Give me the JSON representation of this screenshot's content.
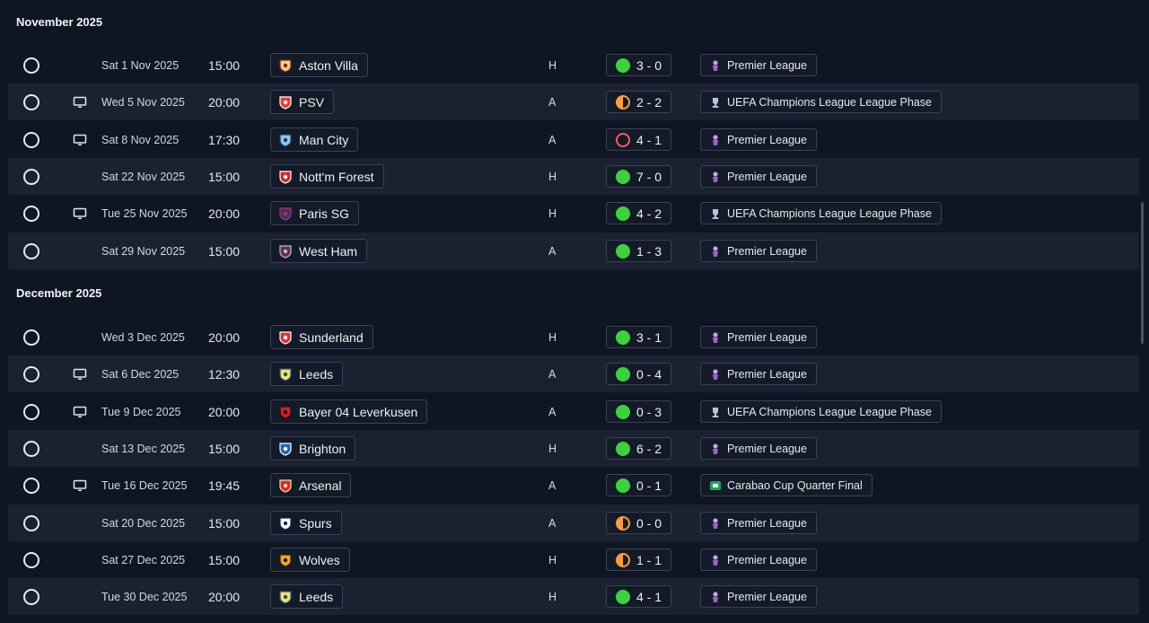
{
  "months": [
    {
      "label": "November 2025",
      "fixtures": [
        {
          "tv": false,
          "date": "Sat 1 Nov 2025",
          "time": "15:00",
          "opponent": "Aston Villa",
          "badge": "aston-villa",
          "venue": "H",
          "result": "win",
          "score": "3 - 0",
          "competition": "Premier League",
          "comp": "pl"
        },
        {
          "tv": true,
          "date": "Wed 5 Nov 2025",
          "time": "20:00",
          "opponent": "PSV",
          "badge": "psv",
          "venue": "A",
          "result": "draw",
          "score": "2 - 2",
          "competition": "UEFA Champions League League Phase",
          "comp": "ucl"
        },
        {
          "tv": true,
          "date": "Sat 8 Nov 2025",
          "time": "17:30",
          "opponent": "Man City",
          "badge": "man-city",
          "venue": "A",
          "result": "loss",
          "score": "4 - 1",
          "competition": "Premier League",
          "comp": "pl"
        },
        {
          "tv": false,
          "date": "Sat 22 Nov 2025",
          "time": "15:00",
          "opponent": "Nott'm Forest",
          "badge": "forest",
          "venue": "H",
          "result": "win",
          "score": "7 - 0",
          "competition": "Premier League",
          "comp": "pl"
        },
        {
          "tv": true,
          "date": "Tue 25 Nov 2025",
          "time": "20:00",
          "opponent": "Paris SG",
          "badge": "psg",
          "venue": "H",
          "result": "win",
          "score": "4 - 2",
          "competition": "UEFA Champions League League Phase",
          "comp": "ucl"
        },
        {
          "tv": false,
          "date": "Sat 29 Nov 2025",
          "time": "15:00",
          "opponent": "West Ham",
          "badge": "west-ham",
          "venue": "A",
          "result": "win",
          "score": "1 - 3",
          "competition": "Premier League",
          "comp": "pl"
        }
      ]
    },
    {
      "label": "December 2025",
      "fixtures": [
        {
          "tv": false,
          "date": "Wed 3 Dec 2025",
          "time": "20:00",
          "opponent": "Sunderland",
          "badge": "sunderland",
          "venue": "H",
          "result": "win",
          "score": "3 - 1",
          "competition": "Premier League",
          "comp": "pl"
        },
        {
          "tv": true,
          "date": "Sat 6 Dec 2025",
          "time": "12:30",
          "opponent": "Leeds",
          "badge": "leeds",
          "venue": "A",
          "result": "win",
          "score": "0 - 4",
          "competition": "Premier League",
          "comp": "pl"
        },
        {
          "tv": true,
          "date": "Tue 9 Dec 2025",
          "time": "20:00",
          "opponent": "Bayer 04 Leverkusen",
          "badge": "leverkusen",
          "venue": "A",
          "result": "win",
          "score": "0 - 3",
          "competition": "UEFA Champions League League Phase",
          "comp": "ucl"
        },
        {
          "tv": false,
          "date": "Sat 13 Dec 2025",
          "time": "15:00",
          "opponent": "Brighton",
          "badge": "brighton",
          "venue": "H",
          "result": "win",
          "score": "6 - 2",
          "competition": "Premier League",
          "comp": "pl"
        },
        {
          "tv": true,
          "date": "Tue 16 Dec 2025",
          "time": "19:45",
          "opponent": "Arsenal",
          "badge": "arsenal",
          "venue": "A",
          "result": "win",
          "score": "0 - 1",
          "competition": "Carabao Cup Quarter Final",
          "comp": "carabao"
        },
        {
          "tv": false,
          "date": "Sat 20 Dec 2025",
          "time": "15:00",
          "opponent": "Spurs",
          "badge": "spurs",
          "venue": "A",
          "result": "draw",
          "score": "0 - 0",
          "competition": "Premier League",
          "comp": "pl"
        },
        {
          "tv": false,
          "date": "Sat 27 Dec 2025",
          "time": "15:00",
          "opponent": "Wolves",
          "badge": "wolves",
          "venue": "H",
          "result": "draw",
          "score": "1 - 1",
          "competition": "Premier League",
          "comp": "pl"
        },
        {
          "tv": false,
          "date": "Tue 30 Dec 2025",
          "time": "20:00",
          "opponent": "Leeds",
          "badge": "leeds",
          "venue": "H",
          "result": "win",
          "score": "4 - 1",
          "competition": "Premier League",
          "comp": "pl"
        }
      ]
    }
  ],
  "colors": {
    "win": "#3bd33b",
    "draw": "#ff9d3a",
    "loss": "#ff5a5a",
    "background": "#0f1522",
    "row_alt": "#1a2130"
  }
}
